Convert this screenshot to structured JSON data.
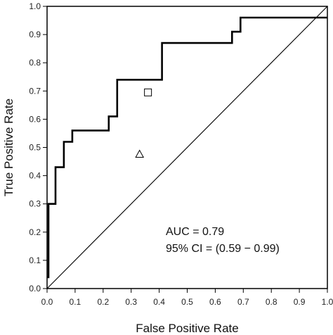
{
  "chart_data": {
    "type": "line",
    "xlabel": "False Positive Rate",
    "ylabel": "True Positive Rate",
    "xlim": [
      0.0,
      1.0
    ],
    "ylim": [
      0.0,
      1.0
    ],
    "x_ticks": [
      "0.0",
      "0.1",
      "0.2",
      "0.3",
      "0.4",
      "0.5",
      "0.6",
      "0.7",
      "0.8",
      "0.9",
      "1.0"
    ],
    "y_ticks": [
      "0.0",
      "0.1",
      "0.2",
      "0.3",
      "0.4",
      "0.5",
      "0.6",
      "0.7",
      "0.8",
      "0.9",
      "1.0"
    ],
    "grid": false,
    "series": [
      {
        "style": "step",
        "x": [
          0.0,
          0.0,
          0.005,
          0.005,
          0.03,
          0.03,
          0.06,
          0.06,
          0.09,
          0.09,
          0.22,
          0.22,
          0.25,
          0.25,
          0.41,
          0.41,
          0.66,
          0.66,
          0.69,
          0.69,
          1.0
        ],
        "y": [
          0.04,
          0.04,
          0.04,
          0.3,
          0.3,
          0.43,
          0.43,
          0.52,
          0.52,
          0.56,
          0.56,
          0.61,
          0.61,
          0.74,
          0.74,
          0.87,
          0.87,
          0.91,
          0.91,
          0.96,
          0.96
        ]
      },
      {
        "style": "diagonal",
        "x": [
          0.0,
          1.0
        ],
        "y": [
          0.0,
          1.0
        ]
      }
    ],
    "markers": [
      {
        "shape": "square",
        "x": 0.36,
        "y": 0.695
      },
      {
        "shape": "triangle",
        "x": 0.33,
        "y": 0.475
      }
    ],
    "annotations": {
      "auc": "AUC  =  0.79",
      "ci": "95%  CI  =  (0.59 − 0.99)"
    }
  }
}
